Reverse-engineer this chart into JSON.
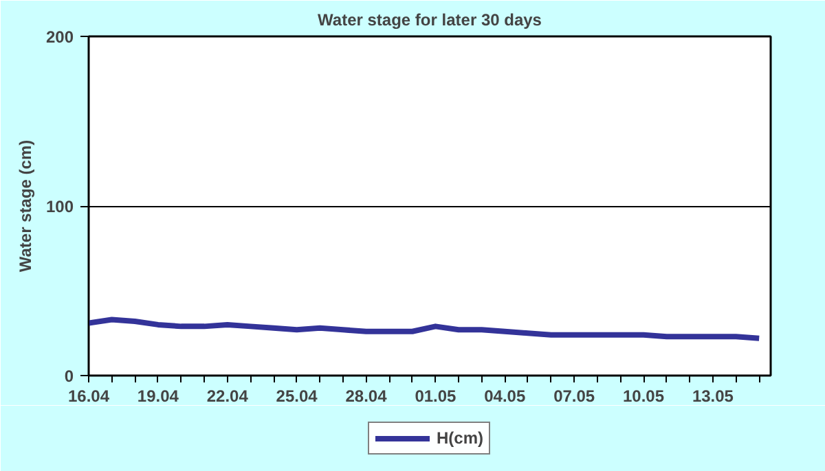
{
  "chart_data": {
    "type": "line",
    "title": "Water stage for later 30 days",
    "ylabel": "Water stage (cm)",
    "categories": [
      "16.04",
      null,
      null,
      "19.04",
      null,
      null,
      "22.04",
      null,
      null,
      "25.04",
      null,
      null,
      "28.04",
      null,
      null,
      "01.05",
      null,
      null,
      "04.05",
      null,
      null,
      "07.05",
      null,
      null,
      "10.05",
      null,
      null,
      "13.05",
      null,
      null
    ],
    "series": [
      {
        "name": "H(cm)",
        "color": "#333399",
        "values": [
          31,
          33,
          32,
          30,
          29,
          29,
          30,
          29,
          28,
          27,
          28,
          27,
          26,
          26,
          26,
          29,
          27,
          27,
          26,
          25,
          24,
          24,
          24,
          24,
          24,
          23,
          23,
          23,
          23,
          22
        ]
      }
    ],
    "ylim": [
      0,
      200
    ],
    "yticks": [
      0,
      100,
      200
    ],
    "grid": "y",
    "legend": "bottom",
    "marker": "none",
    "line_style": "solid"
  }
}
